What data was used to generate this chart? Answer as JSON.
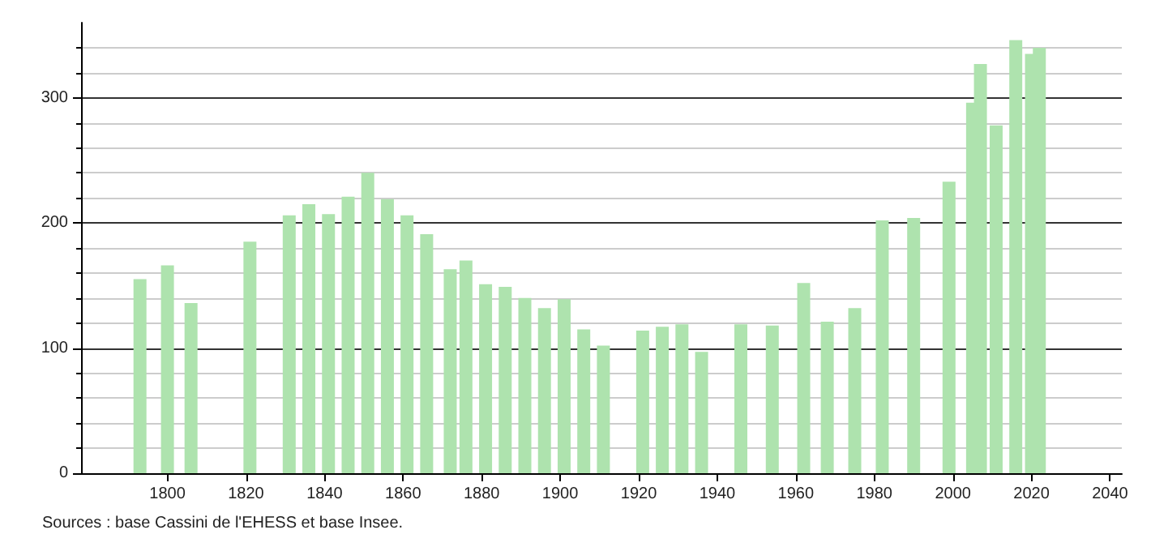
{
  "chart_data": {
    "type": "bar",
    "x": [
      1793,
      1800,
      1806,
      1821,
      1831,
      1836,
      1841,
      1846,
      1851,
      1856,
      1861,
      1866,
      1872,
      1876,
      1881,
      1886,
      1891,
      1896,
      1901,
      1906,
      1911,
      1921,
      1926,
      1931,
      1936,
      1946,
      1954,
      1962,
      1968,
      1975,
      1982,
      1990,
      1999,
      2005,
      2007,
      2011,
      2016,
      2020,
      2022
    ],
    "values": [
      155,
      166,
      136,
      185,
      206,
      215,
      207,
      221,
      240,
      219,
      206,
      191,
      163,
      170,
      151,
      149,
      140,
      132,
      139,
      115,
      102,
      114,
      117,
      119,
      97,
      119,
      118,
      152,
      121,
      132,
      202,
      204,
      233,
      296,
      327,
      278,
      346,
      335,
      340
    ],
    "color": "#aee3ae",
    "xlim": [
      1778,
      2043
    ],
    "xticks": [
      1800,
      1820,
      1840,
      1860,
      1880,
      1900,
      1920,
      1940,
      1960,
      1980,
      2000,
      2020,
      2040
    ],
    "ylim": [
      0,
      360
    ],
    "yticks": [
      0,
      100,
      200,
      300
    ],
    "grid": "y",
    "annotations": [
      "Sources : base Cassini de l'EHESS et base Insee."
    ]
  }
}
